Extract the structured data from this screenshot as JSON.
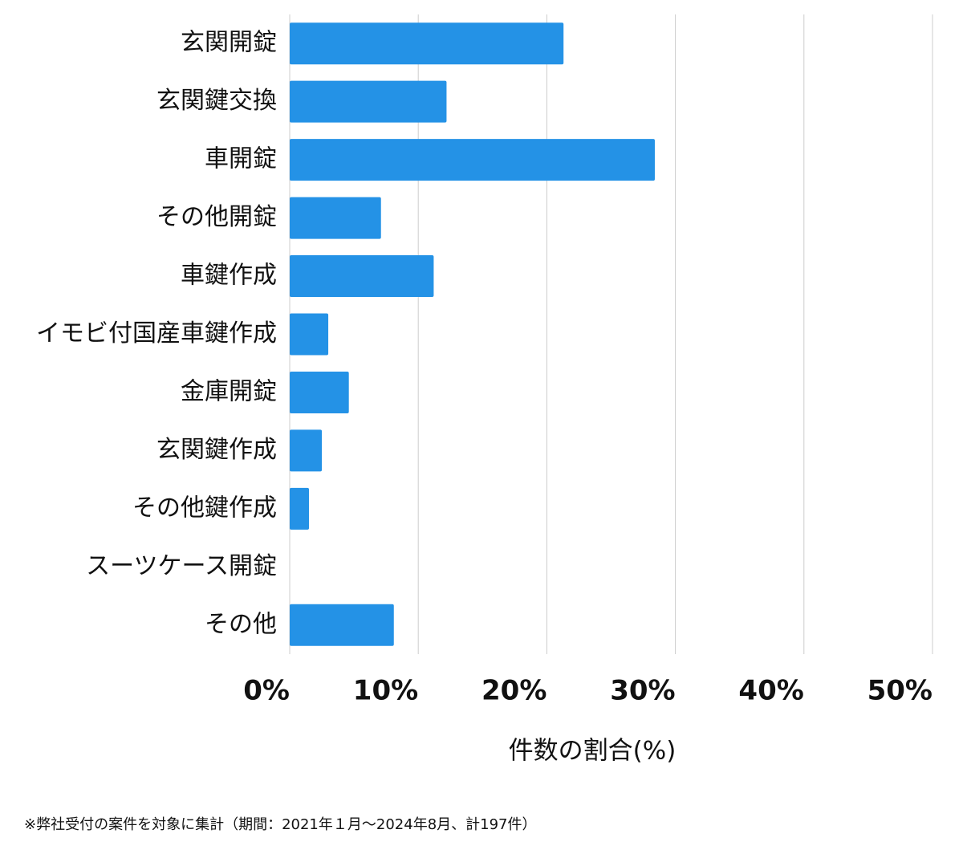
{
  "chart_data": {
    "type": "bar",
    "orientation": "horizontal",
    "categories": [
      "玄関開錠",
      "玄関鍵交換",
      "車開錠",
      "その他開錠",
      "車鍵作成",
      "イモビ付国産車鍵作成",
      "金庫開錠",
      "玄関鍵作成",
      "その他鍵作成",
      "スーツケース開錠",
      "その他"
    ],
    "values": [
      21.3,
      12.2,
      28.4,
      7.1,
      11.2,
      3.0,
      4.6,
      2.5,
      1.5,
      0,
      8.1
    ],
    "color": "#2492e6",
    "xlim": [
      0,
      50
    ],
    "xticks": [
      {
        "value": 0,
        "label": "0%"
      },
      {
        "value": 10,
        "label": "10%"
      },
      {
        "value": 20,
        "label": "20%"
      },
      {
        "value": 30,
        "label": "30%"
      },
      {
        "value": 40,
        "label": "40%"
      },
      {
        "value": 50,
        "label": "50%"
      }
    ],
    "grid": true,
    "x_label": "件数の割合(%)",
    "footnote": "※弊社受付の案件を対象に集計（期間：2021年１月〜2024年8月、計197件）"
  }
}
